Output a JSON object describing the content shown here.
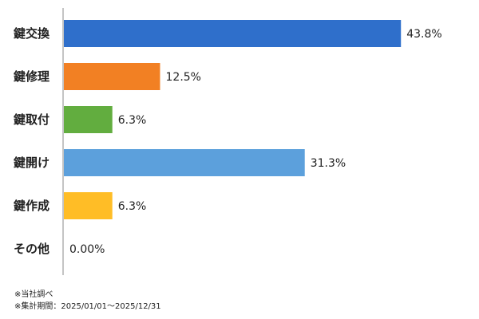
{
  "chart_data": {
    "type": "bar",
    "orientation": "horizontal",
    "categories": [
      "鍵交換",
      "鍵修理",
      "鍵取付",
      "鍵開け",
      "鍵作成",
      "その他"
    ],
    "values": [
      43.8,
      12.5,
      6.3,
      31.3,
      6.3,
      0.0
    ],
    "value_labels": [
      "43.8%",
      "12.5%",
      "6.3%",
      "31.3%",
      "6.3%",
      "0.00%"
    ],
    "colors": [
      "#2f6fcb",
      "#f28023",
      "#62ad3f",
      "#5ca0dc",
      "#ffbd26",
      "#999999"
    ],
    "xlim": [
      0,
      50
    ],
    "grid": false,
    "legend": "none"
  },
  "footnotes": {
    "source": "※当社調べ",
    "period": "※集計期間：2025/01/01～2025/12/31"
  }
}
